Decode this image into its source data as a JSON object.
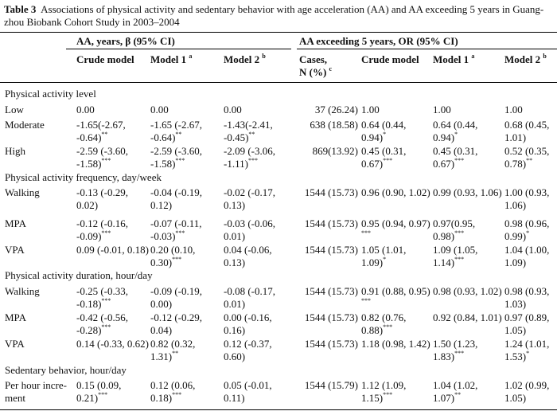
{
  "caption": {
    "label": "Table 3",
    "text_line1": "Associations of physical activity and sedentary behavior with age acceleration (AA) and AA exceeding 5 years in Guang-",
    "text_line2": "zhou Biobank Cohort Study in 2003–2004"
  },
  "header": {
    "group1": "AA, years, β (95% CI)",
    "group2": "AA exceeding 5 years, OR (95% CI)",
    "crude": "Crude model",
    "model1": "Model 1",
    "model1_sup": "a",
    "model2": "Model 2",
    "model2_sup": "b",
    "cases_line1": "Cases,",
    "cases_line2": "N (%)",
    "cases_sup": "c",
    "crude2": "Crude model",
    "model1b": "Model 1",
    "model1b_sup": "a",
    "model2b": "Model 2",
    "model2b_sup": "b"
  },
  "rows": [
    {
      "type": "section",
      "label": "Physical activity level"
    },
    {
      "type": "data",
      "label": [
        "Low"
      ],
      "c1": [
        "0.00"
      ],
      "c2": [
        "0.00"
      ],
      "c3": [
        "0.00"
      ],
      "c4": [
        "37 (26.24)"
      ],
      "c5": [
        "1.00"
      ],
      "c6": [
        "1.00"
      ],
      "c7": [
        "1.00"
      ]
    },
    {
      "type": "data",
      "label": [
        "Moderate"
      ],
      "c1": [
        "-1.65(-2.67,",
        "-0.64)",
        "**"
      ],
      "c2": [
        "-1.65 (-2.67,",
        "-0.64)",
        "**"
      ],
      "c3": [
        "-1.43(-2.41,",
        "-0.45)",
        "**"
      ],
      "c4": [
        "638 (18.58)"
      ],
      "c5": [
        "0.64 (0.44,",
        "0.94)",
        "*"
      ],
      "c6": [
        "0.64 (0.44,",
        "0.94)",
        "*"
      ],
      "c7": [
        "0.68 (0.45,",
        "1.01)"
      ]
    },
    {
      "type": "data",
      "label": [
        "High"
      ],
      "c1": [
        "-2.59 (-3.60,",
        "-1.58)",
        "***"
      ],
      "c2": [
        "-2.59 (-3.60,",
        "-1.58)",
        "***"
      ],
      "c3": [
        "-2.09 (-3.06,",
        "-1.11)",
        "***"
      ],
      "c4": [
        "869(13.92)"
      ],
      "c5": [
        "0.45 (0.31,",
        "0.67)",
        "***"
      ],
      "c6": [
        "0.45 (0.31,",
        "0.67)",
        "***"
      ],
      "c7": [
        "0.52 (0.35,",
        "0.78)",
        "**"
      ]
    },
    {
      "type": "section",
      "label": "Physical activity frequency, day/week"
    },
    {
      "type": "data",
      "label": [
        "Walking"
      ],
      "c1": [
        "-0.13 (-0.29,",
        "0.02)"
      ],
      "c2": [
        "-0.04 (-0.19,",
        "0.12)"
      ],
      "c3": [
        "-0.02 (-0.17,",
        "0.13)"
      ],
      "c4": [
        "1544 (15.73)"
      ],
      "c5": [
        "0.96 (0.90, 1.02)"
      ],
      "c6": [
        "0.99 (0.93, 1.06)"
      ],
      "c7": [
        "1.00 (0.93,",
        "1.06)"
      ]
    },
    {
      "type": "data",
      "label": [
        "MPA"
      ],
      "c1": [
        "-0.12 (-0.16,",
        "-0.09)",
        "***"
      ],
      "c2": [
        "-0.07 (-0.11,",
        "-0.03)",
        "***"
      ],
      "c3": [
        "-0.03 (-0.06,",
        "0.01)"
      ],
      "c4": [
        "1544 (15.73)"
      ],
      "c5": [
        "0.95 (0.94, 0.97)",
        "",
        "***"
      ],
      "c6": [
        "0.97(0.95,",
        "0.98)",
        "***"
      ],
      "c7": [
        "0.98 (0.96,",
        "0.99)",
        "*"
      ]
    },
    {
      "type": "data",
      "label": [
        "VPA"
      ],
      "c1": [
        "0.09 (-0.01, 0.18)"
      ],
      "c2": [
        "0.20 (0.10,",
        "0.30)",
        "***"
      ],
      "c3": [
        "0.04 (-0.06,",
        "0.13)"
      ],
      "c4": [
        "1544 (15.73)"
      ],
      "c5": [
        "1.05 (1.01,",
        "1.09)",
        "*"
      ],
      "c6": [
        "1.09 (1.05,",
        "1.14)",
        "***"
      ],
      "c7": [
        "1.04 (1.00,",
        "1.09)"
      ]
    },
    {
      "type": "section",
      "label": "Physical activity duration, hour/day"
    },
    {
      "type": "data",
      "label": [
        "Walking"
      ],
      "c1": [
        "-0.25 (-0.33,",
        "-0.18)",
        "***"
      ],
      "c2": [
        "-0.09 (-0.19,",
        "0.00)"
      ],
      "c3": [
        "-0.08 (-0.17,",
        "0.01)"
      ],
      "c4": [
        "1544 (15.73)"
      ],
      "c5": [
        "0.91 (0.88, 0.95)",
        "",
        "***"
      ],
      "c6": [
        "0.98 (0.93, 1.02)"
      ],
      "c7": [
        "0.98 (0.93,",
        "1.03)"
      ]
    },
    {
      "type": "data",
      "label": [
        "MPA"
      ],
      "c1": [
        "-0.42 (-0.56,",
        "-0.28)",
        "***"
      ],
      "c2": [
        "-0.12 (-0.29,",
        "0.04)"
      ],
      "c3": [
        "0.00 (-0.16,",
        "0.16)"
      ],
      "c4": [
        "1544 (15.73)"
      ],
      "c5": [
        "0.82 (0.76,",
        "0.88)",
        "***"
      ],
      "c6": [
        "0.92 (0.84, 1.01)"
      ],
      "c7": [
        "0.97 (0.89,",
        "1.05)"
      ]
    },
    {
      "type": "data",
      "label": [
        "VPA"
      ],
      "c1": [
        "0.14 (-0.33, 0.62)"
      ],
      "c2": [
        "0.82 (0.32,",
        "1.31)",
        "**"
      ],
      "c3": [
        "0.12 (-0.37,",
        "0.60)"
      ],
      "c4": [
        "1544 (15.73)"
      ],
      "c5": [
        "1.18 (0.98, 1.42)"
      ],
      "c6": [
        "1.50 (1.23,",
        "1.83)",
        "***"
      ],
      "c7": [
        "1.24 (1.01,",
        "1.53)",
        "*"
      ]
    },
    {
      "type": "section",
      "label": "Sedentary behavior, hour/day"
    },
    {
      "type": "data",
      "label": [
        "Per hour incre-",
        "ment"
      ],
      "c1": [
        "0.15 (0.09,",
        "0.21)",
        "***"
      ],
      "c2": [
        "0.12 (0.06,",
        "0.18)",
        "***"
      ],
      "c3": [
        "0.05 (-0.01,",
        "0.11)"
      ],
      "c4": [
        "1544 (15.79)"
      ],
      "c5": [
        "1.12 (1.09,",
        "1.15)",
        "***"
      ],
      "c6": [
        "1.04 (1.02,",
        "1.07)",
        "**"
      ],
      "c7": [
        "1.02 (0.99,",
        "1.05)"
      ]
    }
  ]
}
